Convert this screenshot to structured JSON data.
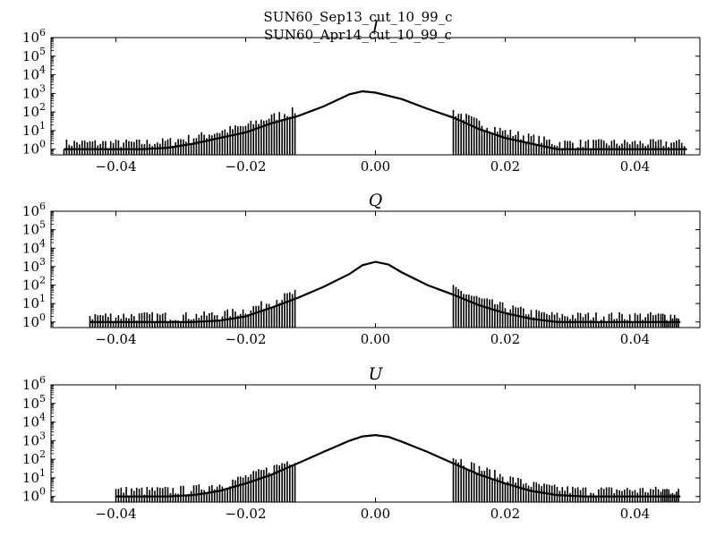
{
  "figure": {
    "title_line1": "SUN60_Sep13_cut_10_99_c",
    "title_line2": "SUN60_Apr14_cut_10_99_c"
  },
  "chart_data": [
    {
      "type": "line",
      "title": "I",
      "xlim": [
        -0.05,
        0.05
      ],
      "yscale": "log",
      "ylim": [
        0.5,
        1000000
      ],
      "xticks": [
        -0.04,
        -0.02,
        0.0,
        0.02,
        0.04
      ],
      "xtick_labels": [
        "−0.04",
        "−0.02",
        "0.00",
        "0.02",
        "0.04"
      ],
      "yticks": [
        1,
        10,
        100,
        1000,
        10000,
        100000,
        1000000
      ],
      "ytick_exponents": [
        "0",
        "1",
        "2",
        "3",
        "4",
        "5",
        "6"
      ],
      "grid": false,
      "color": "#000000",
      "series": [
        {
          "x": [
            -0.048,
            -0.044,
            -0.04,
            -0.036,
            -0.032,
            -0.028,
            -0.024,
            -0.02,
            -0.016,
            -0.012,
            -0.008,
            -0.004,
            -0.002,
            0.0,
            0.004,
            0.008,
            0.012,
            0.016,
            0.02,
            0.024,
            0.028,
            0.032,
            0.036,
            0.04,
            0.044,
            0.048
          ],
          "y": [
            1,
            1,
            1,
            1,
            1.2,
            2,
            4,
            8,
            25,
            60,
            200,
            900,
            1300,
            1100,
            500,
            150,
            50,
            12,
            4,
            2,
            1,
            1,
            1,
            1,
            1,
            1
          ]
        }
      ]
    },
    {
      "type": "line",
      "title": "Q",
      "xlim": [
        -0.05,
        0.05
      ],
      "yscale": "log",
      "ylim": [
        0.5,
        1000000
      ],
      "xticks": [
        -0.04,
        -0.02,
        0.0,
        0.02,
        0.04
      ],
      "xtick_labels": [
        "−0.04",
        "−0.02",
        "0.00",
        "0.02",
        "0.04"
      ],
      "yticks": [
        1,
        10,
        100,
        1000,
        10000,
        100000,
        1000000
      ],
      "ytick_exponents": [
        "0",
        "1",
        "2",
        "3",
        "4",
        "5",
        "6"
      ],
      "grid": false,
      "color": "#000000",
      "series": [
        {
          "x": [
            -0.044,
            -0.04,
            -0.036,
            -0.032,
            -0.028,
            -0.024,
            -0.02,
            -0.016,
            -0.012,
            -0.008,
            -0.004,
            -0.002,
            0.0,
            0.002,
            0.004,
            0.008,
            0.012,
            0.016,
            0.02,
            0.024,
            0.028,
            0.032,
            0.036,
            0.04,
            0.044,
            0.047
          ],
          "y": [
            1,
            1,
            1,
            1,
            1,
            1.2,
            2,
            6,
            20,
            80,
            400,
            1200,
            1800,
            1300,
            500,
            100,
            30,
            8,
            3,
            1.5,
            1,
            1,
            1,
            1,
            1,
            1
          ]
        }
      ]
    },
    {
      "type": "line",
      "title": "U",
      "xlim": [
        -0.05,
        0.05
      ],
      "yscale": "log",
      "ylim": [
        0.5,
        1000000
      ],
      "xticks": [
        -0.04,
        -0.02,
        0.0,
        0.02,
        0.04
      ],
      "xtick_labels": [
        "−0.04",
        "−0.02",
        "0.00",
        "0.02",
        "0.04"
      ],
      "yticks": [
        1,
        10,
        100,
        1000,
        10000,
        100000,
        1000000
      ],
      "ytick_exponents": [
        "0",
        "1",
        "2",
        "3",
        "4",
        "5",
        "6"
      ],
      "grid": false,
      "color": "#000000",
      "series": [
        {
          "x": [
            -0.04,
            -0.036,
            -0.032,
            -0.028,
            -0.024,
            -0.02,
            -0.016,
            -0.012,
            -0.008,
            -0.004,
            -0.002,
            0.0,
            0.002,
            0.004,
            0.008,
            0.012,
            0.016,
            0.02,
            0.024,
            0.028,
            0.032,
            0.036,
            0.04,
            0.044,
            0.047
          ],
          "y": [
            1,
            1,
            1,
            1.2,
            2,
            5,
            15,
            60,
            250,
            1000,
            1700,
            2000,
            1600,
            900,
            250,
            60,
            15,
            5,
            2,
            1.2,
            1,
            1,
            1,
            1,
            1
          ]
        }
      ]
    }
  ]
}
